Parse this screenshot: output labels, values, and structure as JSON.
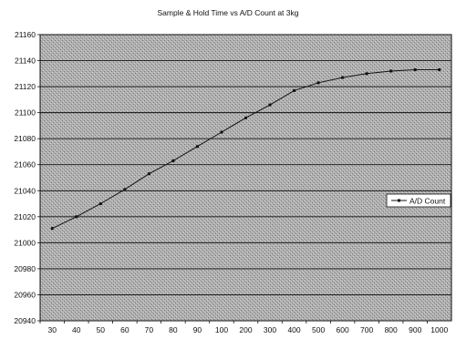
{
  "chart_data": {
    "type": "line",
    "title": "Sample & Hold Time vs A/D Count at 3kg",
    "xlabel": "",
    "ylabel": "",
    "categories": [
      "30",
      "40",
      "50",
      "60",
      "70",
      "80",
      "90",
      "100",
      "200",
      "300",
      "400",
      "500",
      "600",
      "700",
      "800",
      "900",
      "1000"
    ],
    "series": [
      {
        "name": "A/D Count",
        "values": [
          21011,
          21020,
          21030,
          21041,
          21053,
          21063,
          21074,
          21085,
          21096,
          21106,
          21117,
          21123,
          21127,
          21130,
          21132,
          21133,
          21133
        ]
      }
    ],
    "yticks": [
      "20940",
      "20960",
      "20980",
      "21000",
      "21020",
      "21040",
      "21060",
      "21080",
      "21100",
      "21120",
      "21140",
      "21160"
    ],
    "ylim": [
      20940,
      21160
    ],
    "grid": true,
    "legend": "right",
    "colors": {
      "plot_bg": "#a9a9a9",
      "grid": "#111111",
      "line": "#111111"
    }
  }
}
